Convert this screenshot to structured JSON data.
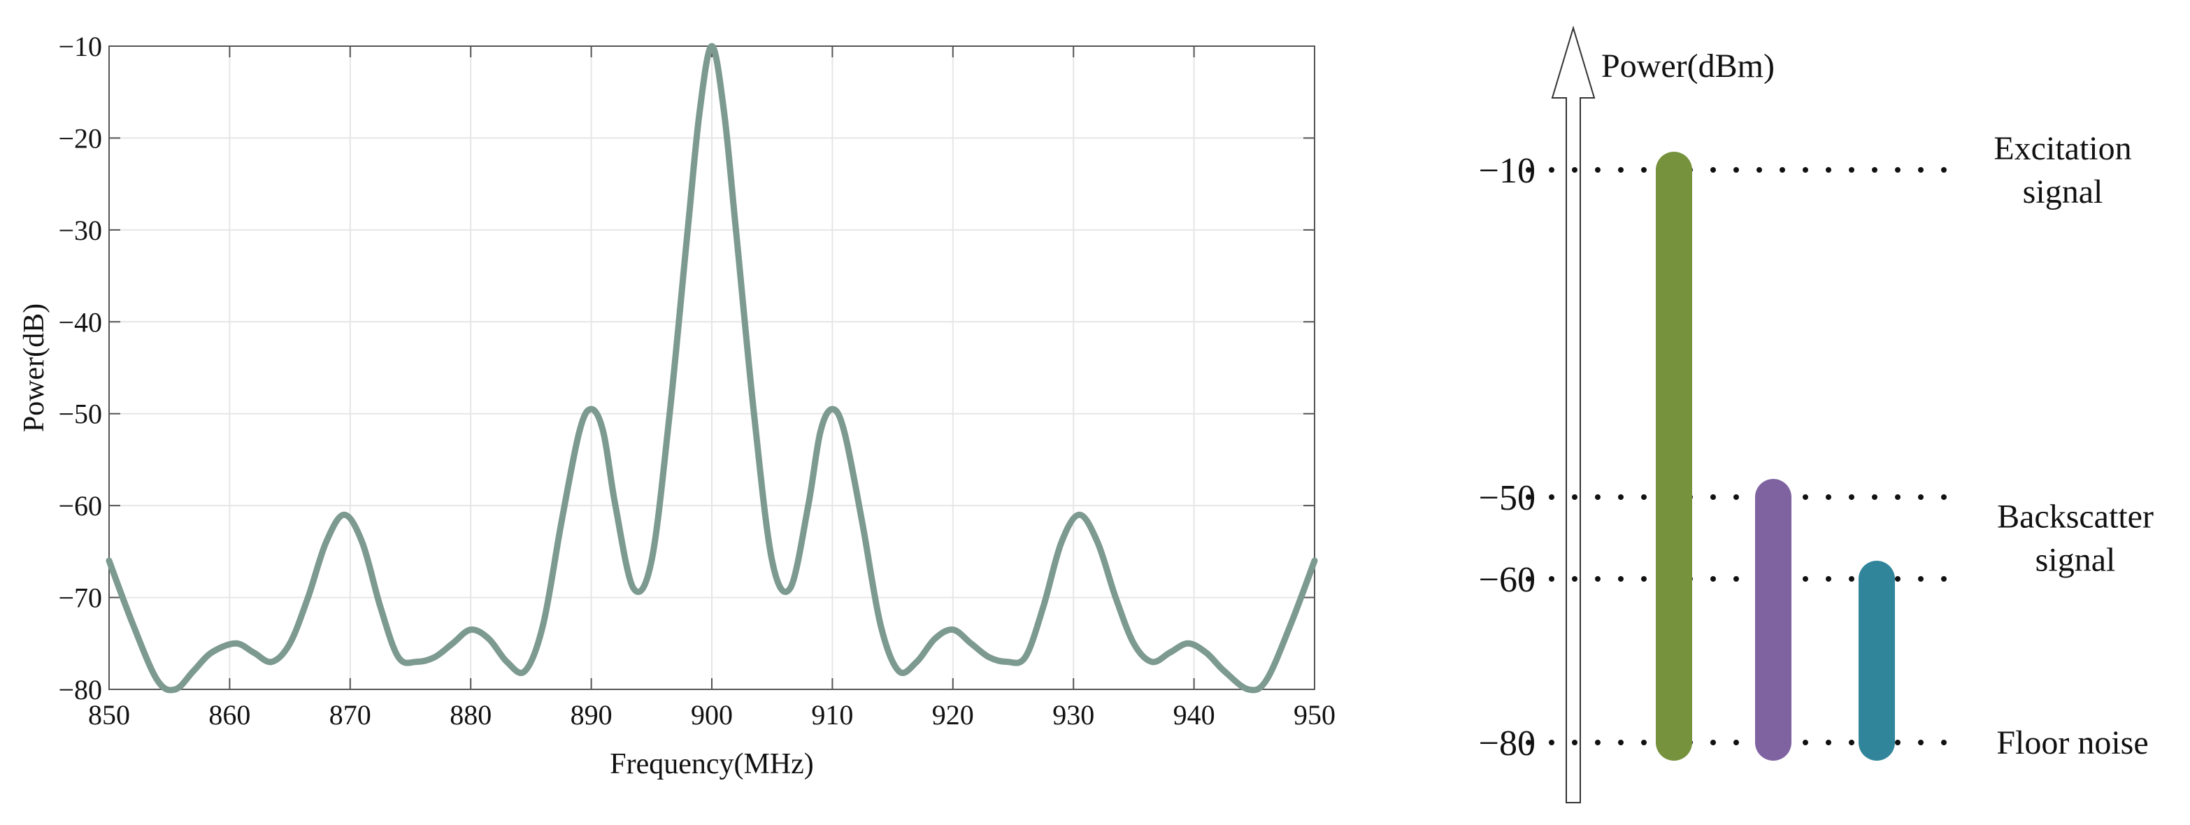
{
  "chart_data": [
    {
      "type": "line",
      "title": "",
      "xlabel": "Frequency(MHz)",
      "ylabel": "Power(dB)",
      "xlim": [
        850,
        950
      ],
      "ylim": [
        -80,
        -10
      ],
      "x_ticks": [
        "850",
        "860",
        "870",
        "880",
        "890",
        "900",
        "910",
        "920",
        "930",
        "940",
        "950"
      ],
      "y_ticks": [
        "−10",
        "−20",
        "−30",
        "−40",
        "−50",
        "−60",
        "−70",
        "−80"
      ],
      "grid": true,
      "legend": "none",
      "line_color": "#7d9a90",
      "series": [
        {
          "x": [
            850,
            852,
            854,
            855.5,
            857,
            858.5,
            860.5,
            862,
            863.5,
            865,
            866.5,
            868,
            869.5,
            871,
            872.5,
            874,
            875.5,
            877,
            878.5,
            880,
            881.5,
            883,
            884.5,
            886,
            887.5,
            889,
            890,
            891,
            892,
            893.5,
            895,
            896.5,
            898,
            899,
            900,
            901,
            902,
            903.5,
            905,
            906.5,
            908,
            909,
            910,
            911,
            912.5,
            914,
            915.5,
            917,
            918.5,
            920,
            921.5,
            923,
            924.5,
            926,
            927.5,
            929,
            930.5,
            932,
            933.5,
            935,
            936.5,
            938,
            939.5,
            941,
            942.5,
            944.5,
            946,
            948,
            950
          ],
          "y": [
            -66,
            -73,
            -79,
            -80,
            -78,
            -76,
            -75,
            -76,
            -77,
            -75,
            -70,
            -64,
            -61,
            -64,
            -71,
            -76.5,
            -77,
            -76.5,
            -75,
            -73.5,
            -74.5,
            -77,
            -78,
            -73,
            -62,
            -52,
            -49.5,
            -52,
            -60,
            -69,
            -66,
            -50,
            -30,
            -17,
            -10,
            -17,
            -30,
            -50,
            -66,
            -69,
            -60,
            -52,
            -49.5,
            -52,
            -62,
            -73,
            -78,
            -77,
            -74.5,
            -73.5,
            -75,
            -76.5,
            -77,
            -76.5,
            -71,
            -64,
            -61,
            -64,
            -70,
            -75,
            -77,
            -76,
            -75,
            -76,
            -78,
            -80,
            -79,
            -73,
            -66
          ]
        }
      ]
    },
    {
      "type": "bar",
      "title": "",
      "ylabel": "Power(dBm)",
      "levels": [
        {
          "value": -10,
          "tick": "−10"
        },
        {
          "value": -50,
          "tick": "−50"
        },
        {
          "value": -60,
          "tick": "−60"
        },
        {
          "value": -80,
          "tick": "−80"
        }
      ],
      "bars": [
        {
          "from": -80,
          "to": -10,
          "color": "#76923c"
        },
        {
          "from": -80,
          "to": -50,
          "color": "#7f63a1"
        },
        {
          "from": -80,
          "to": -60,
          "color": "#31859b"
        }
      ],
      "annotations": [
        {
          "lines": [
            "Excitation",
            "signal"
          ],
          "level": -10
        },
        {
          "lines": [
            "Backscatter",
            "signal"
          ],
          "level": -55
        },
        {
          "lines": [
            "Floor noise"
          ],
          "level": -80
        }
      ]
    }
  ]
}
